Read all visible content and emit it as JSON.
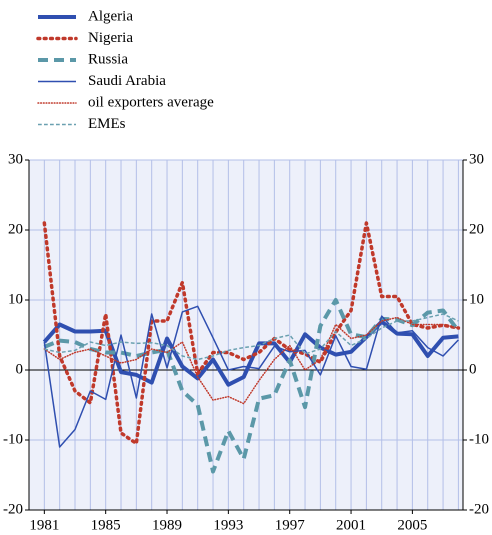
{
  "chart_data": {
    "type": "line",
    "x": [
      1981,
      1982,
      1983,
      1984,
      1985,
      1986,
      1987,
      1988,
      1989,
      1990,
      1991,
      1992,
      1993,
      1994,
      1995,
      1996,
      1997,
      1998,
      1999,
      2000,
      2001,
      2002,
      2003,
      2004,
      2005,
      2006,
      2007,
      2008
    ],
    "xlim": [
      1980,
      2008.3
    ],
    "xticks": [
      1981,
      1985,
      1989,
      1993,
      1997,
      2001,
      2005
    ],
    "ylim": [
      -20,
      30
    ],
    "yticks": [
      -20,
      -10,
      0,
      10,
      20,
      30
    ],
    "grid": true,
    "legend": "top-left",
    "series": [
      {
        "name": "Algeria",
        "color": "#2f4fb0",
        "linewidth": 4,
        "linestyle": "solid",
        "values": [
          4,
          6.5,
          5.5,
          5.5,
          5.6,
          -0.3,
          -0.7,
          -1.8,
          4.5,
          0.5,
          -1.2,
          1.5,
          -2.1,
          -1,
          3.8,
          3.8,
          1.1,
          5.1,
          3.2,
          2.2,
          2.6,
          4.7,
          6.9,
          5.2,
          5.1,
          2,
          4.6,
          4.8
        ]
      },
      {
        "name": "Nigeria",
        "color": "#c0392b",
        "linewidth": 3.5,
        "linestyle": "dotted",
        "values": [
          21,
          2,
          -3,
          -4.7,
          8,
          -9,
          -10.5,
          7,
          7,
          12.5,
          -0.5,
          2.5,
          2.5,
          1.5,
          2.5,
          4.5,
          2.9,
          2.3,
          1.1,
          5.4,
          8.5,
          21,
          10.5,
          10.5,
          6.5,
          6,
          6.4,
          6
        ]
      },
      {
        "name": "Russia",
        "color": "#5b98a8",
        "linewidth": 4,
        "linestyle": "dashed",
        "values": [
          3.3,
          4.2,
          4,
          3,
          2.5,
          2.5,
          2,
          2.5,
          2.9,
          -3,
          -5,
          -14.5,
          -8.7,
          -12.7,
          -4.1,
          -3.6,
          1.4,
          -5.3,
          6.3,
          10,
          5.1,
          4.7,
          7.3,
          7.2,
          6.4,
          8.2,
          8.5,
          5.6
        ]
      },
      {
        "name": "Saudi Arabia",
        "color": "#2f4fb0",
        "linewidth": 1.5,
        "linestyle": "solid",
        "values": [
          4,
          -11,
          -8.5,
          -3,
          -4.2,
          5,
          -4,
          8,
          0.3,
          8.3,
          9.1,
          4.6,
          0,
          0.5,
          0.2,
          3.4,
          2.6,
          2.8,
          -0.7,
          4.9,
          0.5,
          0.1,
          7.7,
          5.3,
          5.6,
          3.2,
          2,
          4.3
        ]
      },
      {
        "name": "oil exporters average",
        "color": "#c0392b",
        "linewidth": 1.5,
        "linestyle": "dotted",
        "values": [
          3,
          1.5,
          2.5,
          3,
          2,
          1,
          1.5,
          3,
          2.5,
          4,
          -1,
          -4.3,
          -3.8,
          -4.8,
          -1.5,
          1.5,
          3.5,
          0,
          1.5,
          6.5,
          4.5,
          5,
          7,
          7.5,
          6.5,
          6.5,
          6.5,
          6
        ]
      },
      {
        "name": "EMEs",
        "color": "#6aa0b0",
        "linewidth": 1.5,
        "linestyle": "dashed",
        "values": [
          3,
          2.5,
          2.8,
          4,
          3.5,
          4,
          3.8,
          3.9,
          3.5,
          2,
          1.5,
          2,
          2.8,
          3.2,
          3.5,
          4.5,
          5,
          2.3,
          3,
          5.5,
          3.5,
          4.5,
          6,
          7,
          7,
          7.5,
          8,
          7
        ]
      }
    ]
  }
}
